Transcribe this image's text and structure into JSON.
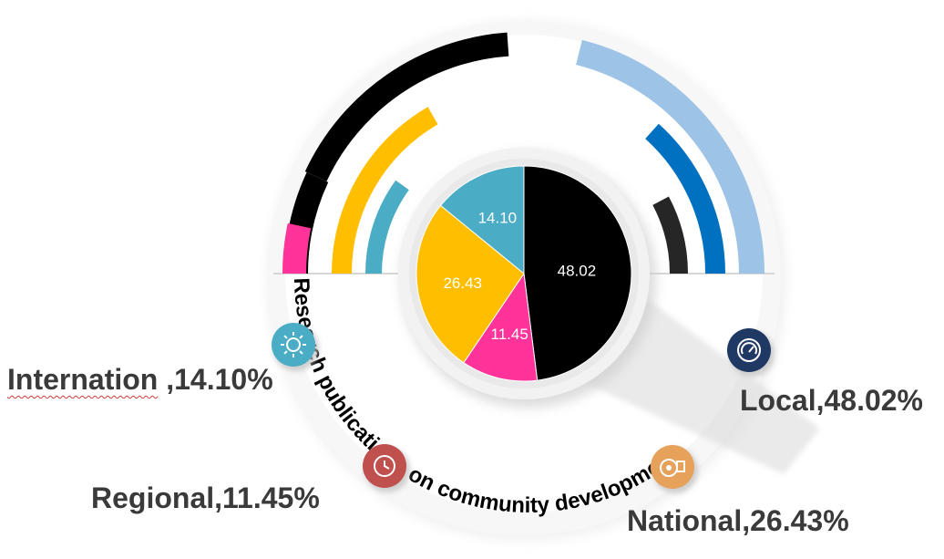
{
  "chart_data": {
    "type": "pie",
    "title": "Research publications on community development",
    "slices": [
      {
        "label": "Local",
        "value": 48.02,
        "display": "48.02",
        "color": "#000000",
        "legend": "Local,48.02%",
        "icon": "speedometer-icon",
        "icon_color": "#1f3864"
      },
      {
        "label": "Regional",
        "value": 11.45,
        "display": "11.45",
        "color": "#ff3399",
        "legend": "Regional,11.45%",
        "icon": "clock-icon",
        "icon_color": "#c0504d"
      },
      {
        "label": "National",
        "value": 26.43,
        "display": "26.43",
        "color": "#ffbf00",
        "legend": "National,26.43%",
        "icon": "disc-icon",
        "icon_color": "#e6a15a"
      },
      {
        "label": "Internation",
        "value": 14.1,
        "display": "14.10",
        "color": "#4bacc6",
        "legend_name": "Internation",
        "legend_value": " ,14.10%",
        "icon": "sun-icon",
        "icon_color": "#4bacc6"
      }
    ],
    "outer_ring_colors": [
      "#000000",
      "#0070c0",
      "#9dc3e6",
      "#262626"
    ],
    "legend": "around"
  }
}
